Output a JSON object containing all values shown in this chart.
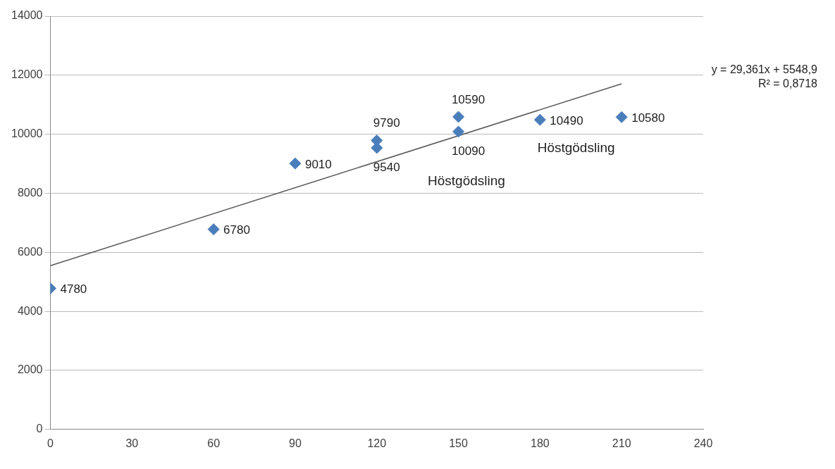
{
  "chart_data": {
    "type": "scatter",
    "series": [
      {
        "type": "scatter",
        "color": "#4a7ebb",
        "data_labels": true,
        "marker": "diamond",
        "x": [
          0,
          60,
          90,
          120,
          120,
          150,
          150,
          180,
          210
        ],
        "values": [
          4780,
          6780,
          9010,
          9790,
          9540,
          10590,
          10090,
          10490,
          10580
        ]
      },
      {
        "type": "line",
        "color": "#595959",
        "x": [
          0,
          210
        ],
        "values": [
          5550,
          11710
        ]
      }
    ],
    "xlim": [
      0,
      240
    ],
    "xticks": [
      0,
      30,
      60,
      90,
      120,
      150,
      180,
      210,
      240
    ],
    "ylim": [
      0,
      14000
    ],
    "yticks": [
      0,
      2000,
      4000,
      6000,
      8000,
      10000,
      12000,
      14000
    ],
    "grid": "y",
    "legend": false,
    "line_style": "solid",
    "annotations": [
      "y = 29,361x + 5548,9",
      "R² = 0,8718",
      "Höstgödsling",
      "Höstgödsling"
    ]
  }
}
